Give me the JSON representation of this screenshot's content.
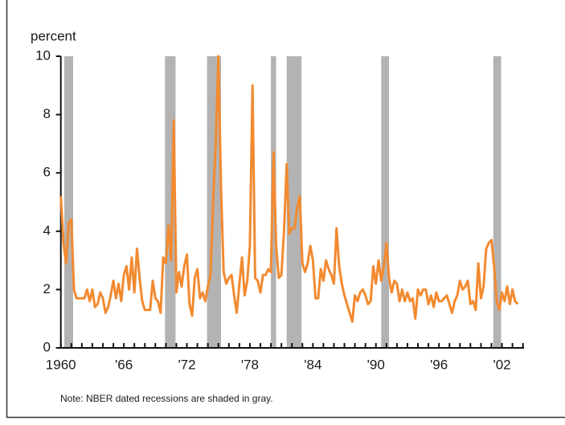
{
  "chart_data": {
    "type": "line",
    "y_label": "percent",
    "note": "Note: NBER dated recessions are shaded in gray.",
    "xlim": [
      1960,
      2004.1
    ],
    "ylim": [
      0,
      10
    ],
    "yticks": [
      0,
      2,
      4,
      6,
      8,
      10
    ],
    "xticks": [
      {
        "value": 1960,
        "label": "1960"
      },
      {
        "value": 1966,
        "label": "'66"
      },
      {
        "value": 1972,
        "label": "'72"
      },
      {
        "value": 1978,
        "label": "'78"
      },
      {
        "value": 1984,
        "label": "'84"
      },
      {
        "value": 1990,
        "label": "'90"
      },
      {
        "value": 1996,
        "label": "'96"
      },
      {
        "value": 2002,
        "label": "'02"
      }
    ],
    "xminorticks": [
      1960,
      1961,
      1962,
      1963,
      1964,
      1965,
      1966,
      1967,
      1968,
      1969,
      1970,
      1971,
      1972,
      1973,
      1974,
      1975,
      1976,
      1977,
      1978,
      1979,
      1980,
      1981,
      1982,
      1983,
      1984,
      1985,
      1986,
      1987,
      1988,
      1989,
      1990,
      1991,
      1992,
      1993,
      1994,
      1995,
      1996,
      1997,
      1998,
      1999,
      2000,
      2001,
      2002,
      2003,
      2004
    ],
    "recessions": [
      [
        1960.33,
        1961.17
      ],
      [
        1969.92,
        1970.92
      ],
      [
        1973.92,
        1975.25
      ],
      [
        1980.0,
        1980.5
      ],
      [
        1981.5,
        1982.92
      ],
      [
        1990.5,
        1991.25
      ],
      [
        2001.17,
        2001.92
      ]
    ],
    "recession_color": "#b3b3b3",
    "x": [
      1960,
      1960.25,
      1960.5,
      1960.75,
      1961,
      1961.25,
      1961.5,
      1961.75,
      1962,
      1962.25,
      1962.5,
      1962.75,
      1963,
      1963.25,
      1963.5,
      1963.75,
      1964,
      1964.25,
      1964.5,
      1964.75,
      1965,
      1965.25,
      1965.5,
      1965.75,
      1966,
      1966.25,
      1966.5,
      1966.75,
      1967,
      1967.25,
      1967.5,
      1967.75,
      1968,
      1968.25,
      1968.5,
      1968.75,
      1969,
      1969.25,
      1969.5,
      1969.75,
      1970,
      1970.25,
      1970.5,
      1970.75,
      1971,
      1971.25,
      1971.5,
      1971.75,
      1972,
      1972.25,
      1972.5,
      1972.75,
      1973,
      1973.25,
      1973.5,
      1973.75,
      1974,
      1974.25,
      1974.5,
      1974.75,
      1975,
      1975.25,
      1975.5,
      1975.75,
      1976,
      1976.25,
      1976.5,
      1976.75,
      1977,
      1977.25,
      1977.5,
      1977.75,
      1978,
      1978.25,
      1978.5,
      1978.75,
      1979,
      1979.25,
      1979.5,
      1979.75,
      1980,
      1980.25,
      1980.5,
      1980.75,
      1981,
      1981.25,
      1981.5,
      1981.75,
      1982,
      1982.25,
      1982.5,
      1982.75,
      1983,
      1983.25,
      1983.5,
      1983.75,
      1984,
      1984.25,
      1984.5,
      1984.75,
      1985,
      1985.25,
      1985.5,
      1985.75,
      1986,
      1986.25,
      1986.5,
      1986.75,
      1987,
      1987.25,
      1987.5,
      1987.75,
      1988,
      1988.25,
      1988.5,
      1988.75,
      1989,
      1989.25,
      1989.5,
      1989.75,
      1990,
      1990.25,
      1990.5,
      1990.75,
      1991,
      1991.25,
      1991.5,
      1991.75,
      1992,
      1992.25,
      1992.5,
      1992.75,
      1993,
      1993.25,
      1993.5,
      1993.75,
      1994,
      1994.25,
      1994.5,
      1994.75,
      1995,
      1995.25,
      1995.5,
      1995.75,
      1996,
      1996.25,
      1996.5,
      1996.75,
      1997,
      1997.25,
      1997.5,
      1997.75,
      1998,
      1998.25,
      1998.5,
      1998.75,
      1999,
      1999.25,
      1999.5,
      1999.75,
      2000,
      2000.25,
      2000.5,
      2000.75,
      2001,
      2001.25,
      2001.5,
      2001.75,
      2002,
      2002.25,
      2002.5,
      2002.75,
      2003,
      2003.25,
      2003.5
    ],
    "series": [
      {
        "color": "#f28a30",
        "values": [
          5.2,
          3.6,
          2.9,
          4.3,
          4.4,
          2.0,
          1.7,
          1.7,
          1.7,
          1.7,
          2.0,
          1.6,
          2.0,
          1.4,
          1.5,
          1.9,
          1.7,
          1.2,
          1.4,
          1.8,
          2.3,
          1.7,
          2.2,
          1.6,
          2.5,
          2.8,
          2.0,
          3.1,
          1.9,
          3.4,
          2.4,
          1.6,
          1.3,
          1.3,
          1.3,
          2.3,
          1.7,
          1.6,
          1.2,
          3.1,
          2.9,
          4.2,
          3.0,
          7.8,
          1.9,
          2.6,
          2.1,
          2.8,
          3.2,
          1.5,
          1.1,
          2.4,
          2.7,
          1.7,
          1.9,
          1.6,
          2.1,
          2.5,
          5.0,
          7.0,
          10.0,
          5.5,
          2.6,
          2.2,
          2.4,
          2.5,
          1.8,
          1.2,
          2.2,
          3.1,
          1.8,
          2.3,
          3.5,
          9.0,
          2.4,
          2.3,
          1.9,
          2.5,
          2.5,
          2.7,
          2.6,
          6.7,
          3.5,
          2.4,
          2.5,
          4.0,
          6.3,
          3.9,
          4.1,
          4.1,
          4.8,
          5.2,
          2.9,
          2.6,
          2.9,
          3.5,
          3.0,
          1.7,
          1.7,
          2.7,
          2.3,
          3.0,
          2.7,
          2.5,
          2.2,
          4.1,
          2.8,
          2.2,
          1.8,
          1.5,
          1.2,
          0.9,
          1.8,
          1.6,
          1.9,
          2.0,
          1.8,
          1.5,
          1.6,
          2.8,
          2.2,
          3.0,
          2.3,
          2.8,
          3.6,
          2.4,
          1.9,
          2.3,
          2.2,
          1.6,
          2.0,
          1.6,
          1.9,
          1.6,
          1.7,
          1.0,
          2.0,
          1.8,
          2.0,
          2.0,
          1.5,
          1.8,
          1.4,
          1.9,
          1.6,
          1.6,
          1.7,
          1.8,
          1.5,
          1.2,
          1.6,
          1.8,
          2.3,
          2.0,
          2.1,
          2.3,
          1.5,
          1.6,
          1.3,
          2.9,
          1.7,
          2.1,
          3.4,
          3.6,
          3.7,
          2.8,
          1.6,
          1.3,
          1.9,
          1.6,
          2.1,
          1.5,
          2.0,
          1.6,
          1.5
        ]
      }
    ]
  }
}
